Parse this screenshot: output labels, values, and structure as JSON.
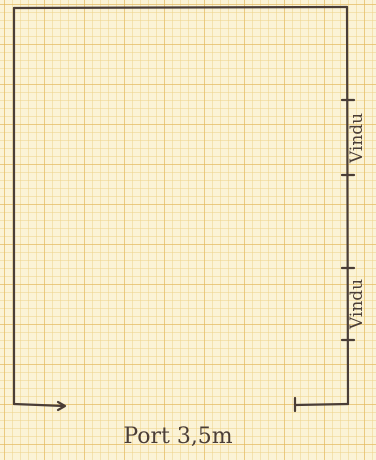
{
  "sketch": {
    "ink_color": "#4a3d36",
    "paper_color": "#fbf3d6",
    "window_label_upper": "Vindu",
    "window_label_lower": "Vindu",
    "door_label": "Port 3,5m"
  }
}
